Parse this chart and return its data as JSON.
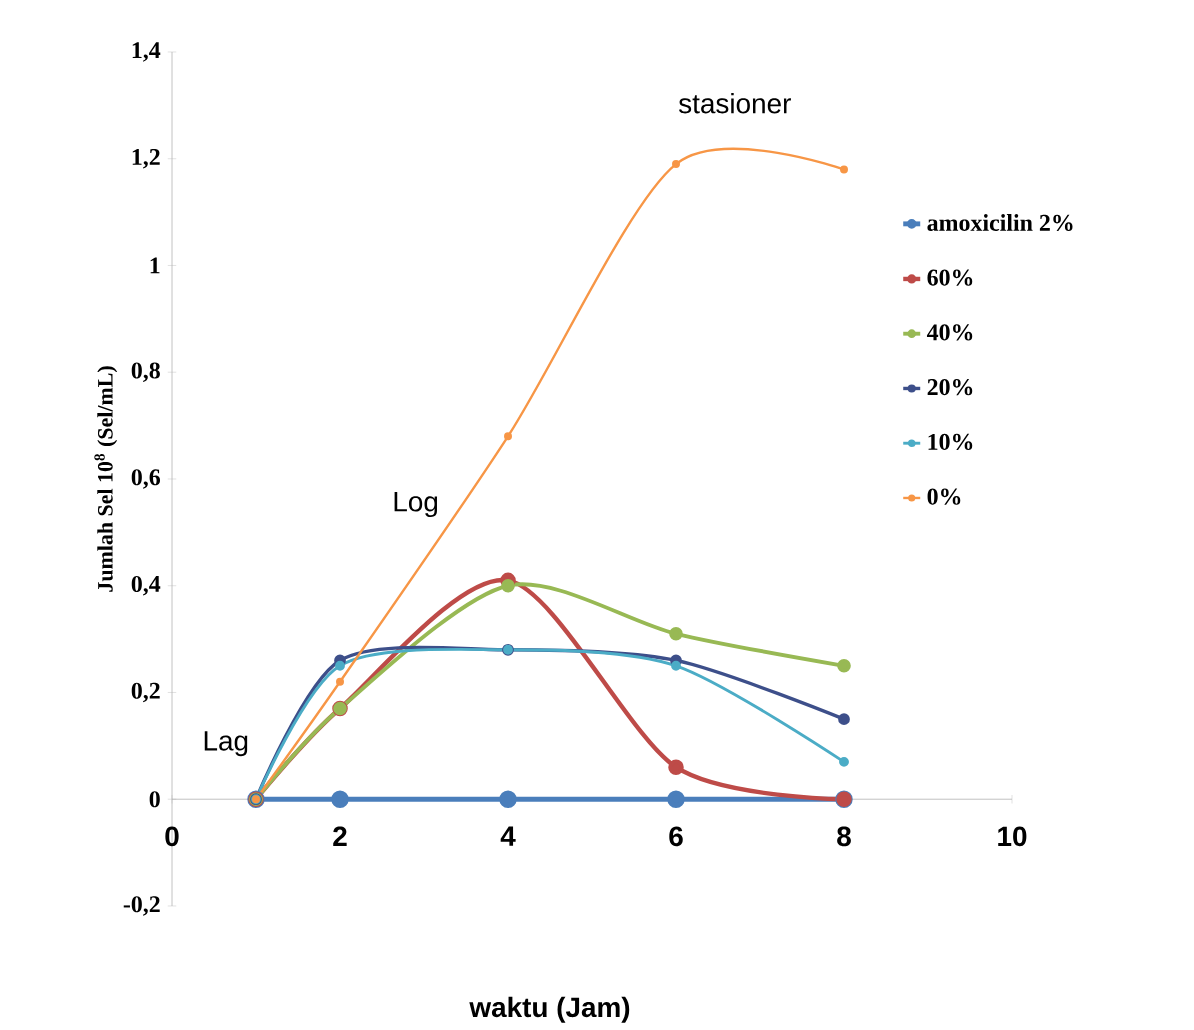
{
  "chart_data": {
    "type": "line",
    "xlabel": "waktu (Jam)",
    "ylabel": "Jumlah Sel 10$^{8}$ (Sel/mL)",
    "x": [
      1,
      2,
      4,
      6,
      8
    ],
    "series": [
      {
        "name": "amoxicilin 2%",
        "color": "#4a7ebb",
        "values": [
          0,
          0,
          0,
          0,
          0
        ]
      },
      {
        "name": "60%",
        "color": "#be4b48",
        "values": [
          0,
          0.17,
          0.41,
          0.06,
          0
        ]
      },
      {
        "name": "40%",
        "color": "#98b954",
        "values": [
          0,
          0.17,
          0.4,
          0.31,
          0.25
        ]
      },
      {
        "name": "20%",
        "color": "#3d4f8a",
        "values": [
          0,
          0.26,
          0.28,
          0.26,
          0.15
        ]
      },
      {
        "name": "10%",
        "color": "#4bacc6",
        "values": [
          0,
          0.25,
          0.28,
          0.25,
          0.07
        ]
      },
      {
        "name": "0%",
        "color": "#f79646",
        "values": [
          0,
          0.22,
          0.68,
          1.19,
          1.18
        ]
      }
    ],
    "xlim": [
      0,
      10
    ],
    "xticks": [
      0,
      2,
      4,
      6,
      8,
      10
    ],
    "ylim": [
      -0.2,
      1.4
    ],
    "yticks": [
      {
        "value": -0.2,
        "label": "-0,2"
      },
      0,
      {
        "value": 0.2,
        "label": "0,2"
      },
      {
        "value": 0.4,
        "label": "0,4"
      },
      {
        "value": 0.6,
        "label": "0,6"
      },
      {
        "value": 0.8,
        "label": "0,8"
      },
      1,
      {
        "value": 1.2,
        "label": "1,2"
      },
      {
        "value": 1.4,
        "label": "1,4"
      }
    ],
    "annotations": [
      "Lag",
      "Log",
      "stasioner"
    ],
    "legend": "right",
    "marker": "circle",
    "line_style": "solid",
    "grid": false
  }
}
